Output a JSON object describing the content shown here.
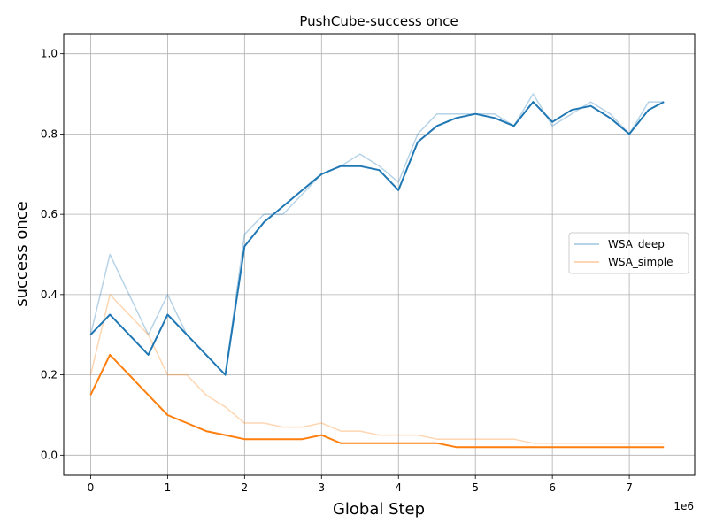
{
  "chart_data": {
    "type": "line",
    "title": "PushCube-success once",
    "xlabel": "Global Step",
    "ylabel": "success once",
    "x_offset_label": "1e6",
    "xlim": [
      -0.35,
      7.85
    ],
    "ylim": [
      -0.05,
      1.05
    ],
    "x_ticks": [
      0,
      1,
      2,
      3,
      4,
      5,
      6,
      7
    ],
    "x_tick_labels": [
      "0",
      "1",
      "2",
      "3",
      "4",
      "5",
      "6",
      "7"
    ],
    "y_ticks": [
      0.0,
      0.2,
      0.4,
      0.6,
      0.8,
      1.0
    ],
    "y_tick_labels": [
      "0.0",
      "0.2",
      "0.4",
      "0.6",
      "0.8",
      "1.0"
    ],
    "grid": true,
    "legend_position": "center-right",
    "colors": {
      "WSA_deep": "#1f77b4",
      "WSA_simple": "#ff7f0e"
    },
    "series": [
      {
        "name": "WSA_deep",
        "legend": true,
        "style": "raw",
        "x": [
          0.0,
          0.25,
          0.5,
          0.75,
          1.0,
          1.25,
          1.5,
          1.75,
          2.0,
          2.25,
          2.5,
          2.75,
          3.0,
          3.25,
          3.5,
          3.75,
          4.0,
          4.25,
          4.5,
          4.75,
          5.0,
          5.25,
          5.5,
          5.75,
          6.0,
          6.25,
          6.5,
          6.75,
          7.0,
          7.25,
          7.45
        ],
        "values": [
          0.3,
          0.5,
          0.4,
          0.3,
          0.4,
          0.3,
          0.25,
          0.2,
          0.55,
          0.6,
          0.6,
          0.65,
          0.7,
          0.72,
          0.75,
          0.72,
          0.68,
          0.8,
          0.85,
          0.85,
          0.85,
          0.85,
          0.82,
          0.9,
          0.82,
          0.85,
          0.88,
          0.85,
          0.8,
          0.88,
          0.88
        ]
      },
      {
        "name": "WSA_simple",
        "legend": true,
        "style": "raw",
        "x": [
          0.0,
          0.25,
          0.5,
          0.75,
          1.0,
          1.25,
          1.5,
          1.75,
          2.0,
          2.25,
          2.5,
          2.75,
          3.0,
          3.25,
          3.5,
          3.75,
          4.0,
          4.25,
          4.5,
          4.75,
          5.0,
          5.25,
          5.5,
          5.75,
          6.0,
          6.25,
          6.5,
          6.75,
          7.0,
          7.25,
          7.45
        ],
        "values": [
          0.2,
          0.4,
          0.35,
          0.3,
          0.2,
          0.2,
          0.15,
          0.12,
          0.08,
          0.08,
          0.07,
          0.07,
          0.08,
          0.06,
          0.06,
          0.05,
          0.05,
          0.05,
          0.04,
          0.04,
          0.04,
          0.04,
          0.04,
          0.03,
          0.03,
          0.03,
          0.03,
          0.03,
          0.03,
          0.03,
          0.03
        ]
      },
      {
        "name": "WSA_deep",
        "legend": false,
        "style": "smoothed",
        "x": [
          0.0,
          0.25,
          0.5,
          0.75,
          1.0,
          1.25,
          1.5,
          1.75,
          2.0,
          2.25,
          2.5,
          2.75,
          3.0,
          3.25,
          3.5,
          3.75,
          4.0,
          4.25,
          4.5,
          4.75,
          5.0,
          5.25,
          5.5,
          5.75,
          6.0,
          6.25,
          6.5,
          6.75,
          7.0,
          7.25,
          7.45
        ],
        "values": [
          0.3,
          0.35,
          0.3,
          0.25,
          0.35,
          0.3,
          0.25,
          0.2,
          0.52,
          0.58,
          0.62,
          0.66,
          0.7,
          0.72,
          0.72,
          0.71,
          0.66,
          0.78,
          0.82,
          0.84,
          0.85,
          0.84,
          0.82,
          0.88,
          0.83,
          0.86,
          0.87,
          0.84,
          0.8,
          0.86,
          0.88
        ]
      },
      {
        "name": "WSA_simple",
        "legend": false,
        "style": "smoothed",
        "x": [
          0.0,
          0.25,
          0.5,
          0.75,
          1.0,
          1.25,
          1.5,
          1.75,
          2.0,
          2.25,
          2.5,
          2.75,
          3.0,
          3.25,
          3.5,
          3.75,
          4.0,
          4.25,
          4.5,
          4.75,
          5.0,
          5.25,
          5.5,
          5.75,
          6.0,
          6.25,
          6.5,
          6.75,
          7.0,
          7.25,
          7.45
        ],
        "values": [
          0.15,
          0.25,
          0.2,
          0.15,
          0.1,
          0.08,
          0.06,
          0.05,
          0.04,
          0.04,
          0.04,
          0.04,
          0.05,
          0.03,
          0.03,
          0.03,
          0.03,
          0.03,
          0.03,
          0.02,
          0.02,
          0.02,
          0.02,
          0.02,
          0.02,
          0.02,
          0.02,
          0.02,
          0.02,
          0.02,
          0.02
        ]
      }
    ]
  }
}
